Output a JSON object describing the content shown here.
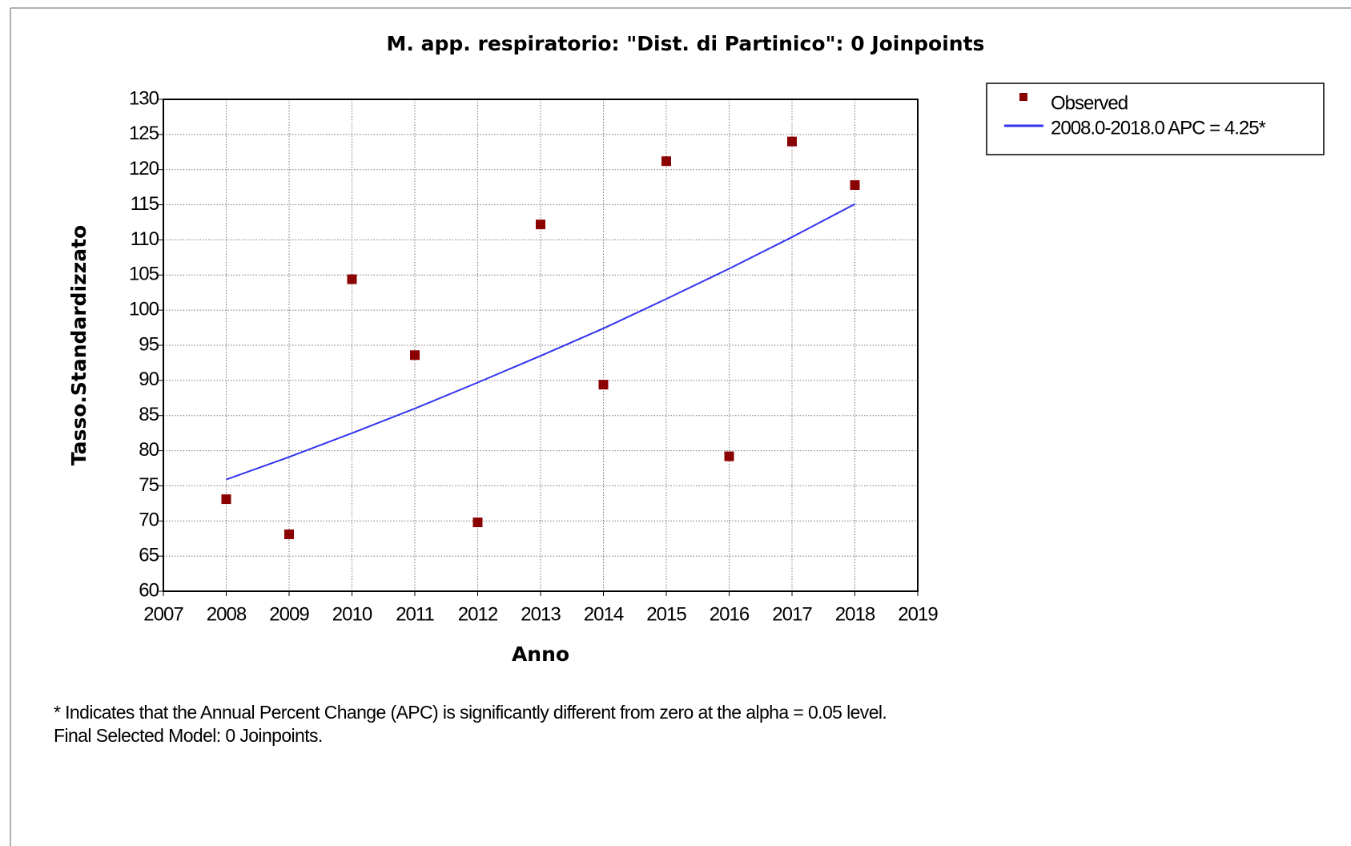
{
  "chart_data": {
    "type": "scatter",
    "title": "M. app. respiratorio: \"Dist. di Partinico\": 0 Joinpoints",
    "xlabel": "Anno",
    "ylabel": "Tasso.Standardizzato",
    "x": [
      2008,
      2009,
      2010,
      2011,
      2012,
      2013,
      2014,
      2015,
      2016,
      2017,
      2018
    ],
    "series": [
      {
        "name": "Observed",
        "type": "scatter",
        "color": "#8b0000",
        "values": [
          73.1,
          68.1,
          104.4,
          93.6,
          69.8,
          112.2,
          89.4,
          121.2,
          79.2,
          124.0,
          117.8
        ]
      },
      {
        "name": "2008.0-2018.0 APC  = 4.25*",
        "type": "line",
        "color": "#3333ee",
        "values": [
          75.9,
          79.1,
          82.5,
          86.0,
          89.7,
          93.5,
          97.4,
          101.6,
          105.9,
          110.4,
          115.1
        ]
      }
    ],
    "xlim": [
      2007,
      2019
    ],
    "xticks": [
      2007,
      2008,
      2009,
      2010,
      2011,
      2012,
      2013,
      2014,
      2015,
      2016,
      2017,
      2018,
      2019
    ],
    "ylim": [
      60,
      130
    ],
    "yticks": [
      60,
      65,
      70,
      75,
      80,
      85,
      90,
      95,
      100,
      105,
      110,
      115,
      120,
      125,
      130
    ],
    "grid": true,
    "legend": "outside-top-right",
    "notes": [
      "* Indicates that the Annual Percent Change (APC) is significantly different from zero at the alpha = 0.05 level.",
      "Final Selected Model: 0 Joinpoints."
    ]
  }
}
